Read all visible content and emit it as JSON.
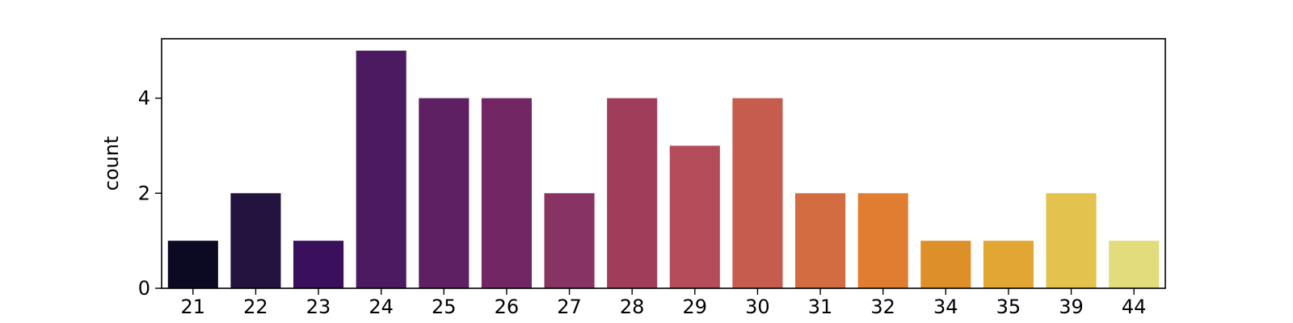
{
  "chart_data": {
    "type": "bar",
    "title": "",
    "xlabel": "",
    "ylabel": "count",
    "categories": [
      "21",
      "22",
      "23",
      "24",
      "25",
      "26",
      "27",
      "28",
      "29",
      "30",
      "31",
      "32",
      "34",
      "35",
      "39",
      "44"
    ],
    "values": [
      1,
      2,
      1,
      5,
      4,
      4,
      2,
      4,
      3,
      4,
      2,
      2,
      1,
      1,
      2,
      1
    ],
    "ylim": [
      0,
      5.25
    ],
    "yticks": [
      0,
      2,
      4
    ],
    "grid": false,
    "legend": "none",
    "colors": [
      "#0c0a22",
      "#22133f",
      "#3a105c",
      "#4c1a60",
      "#5e2062",
      "#722764",
      "#873363",
      "#9f3d5a",
      "#b44c59",
      "#c65c4e",
      "#d36d41",
      "#e07d31",
      "#dd902a",
      "#e2a632",
      "#e3c24d",
      "#e2dc7c"
    ]
  }
}
